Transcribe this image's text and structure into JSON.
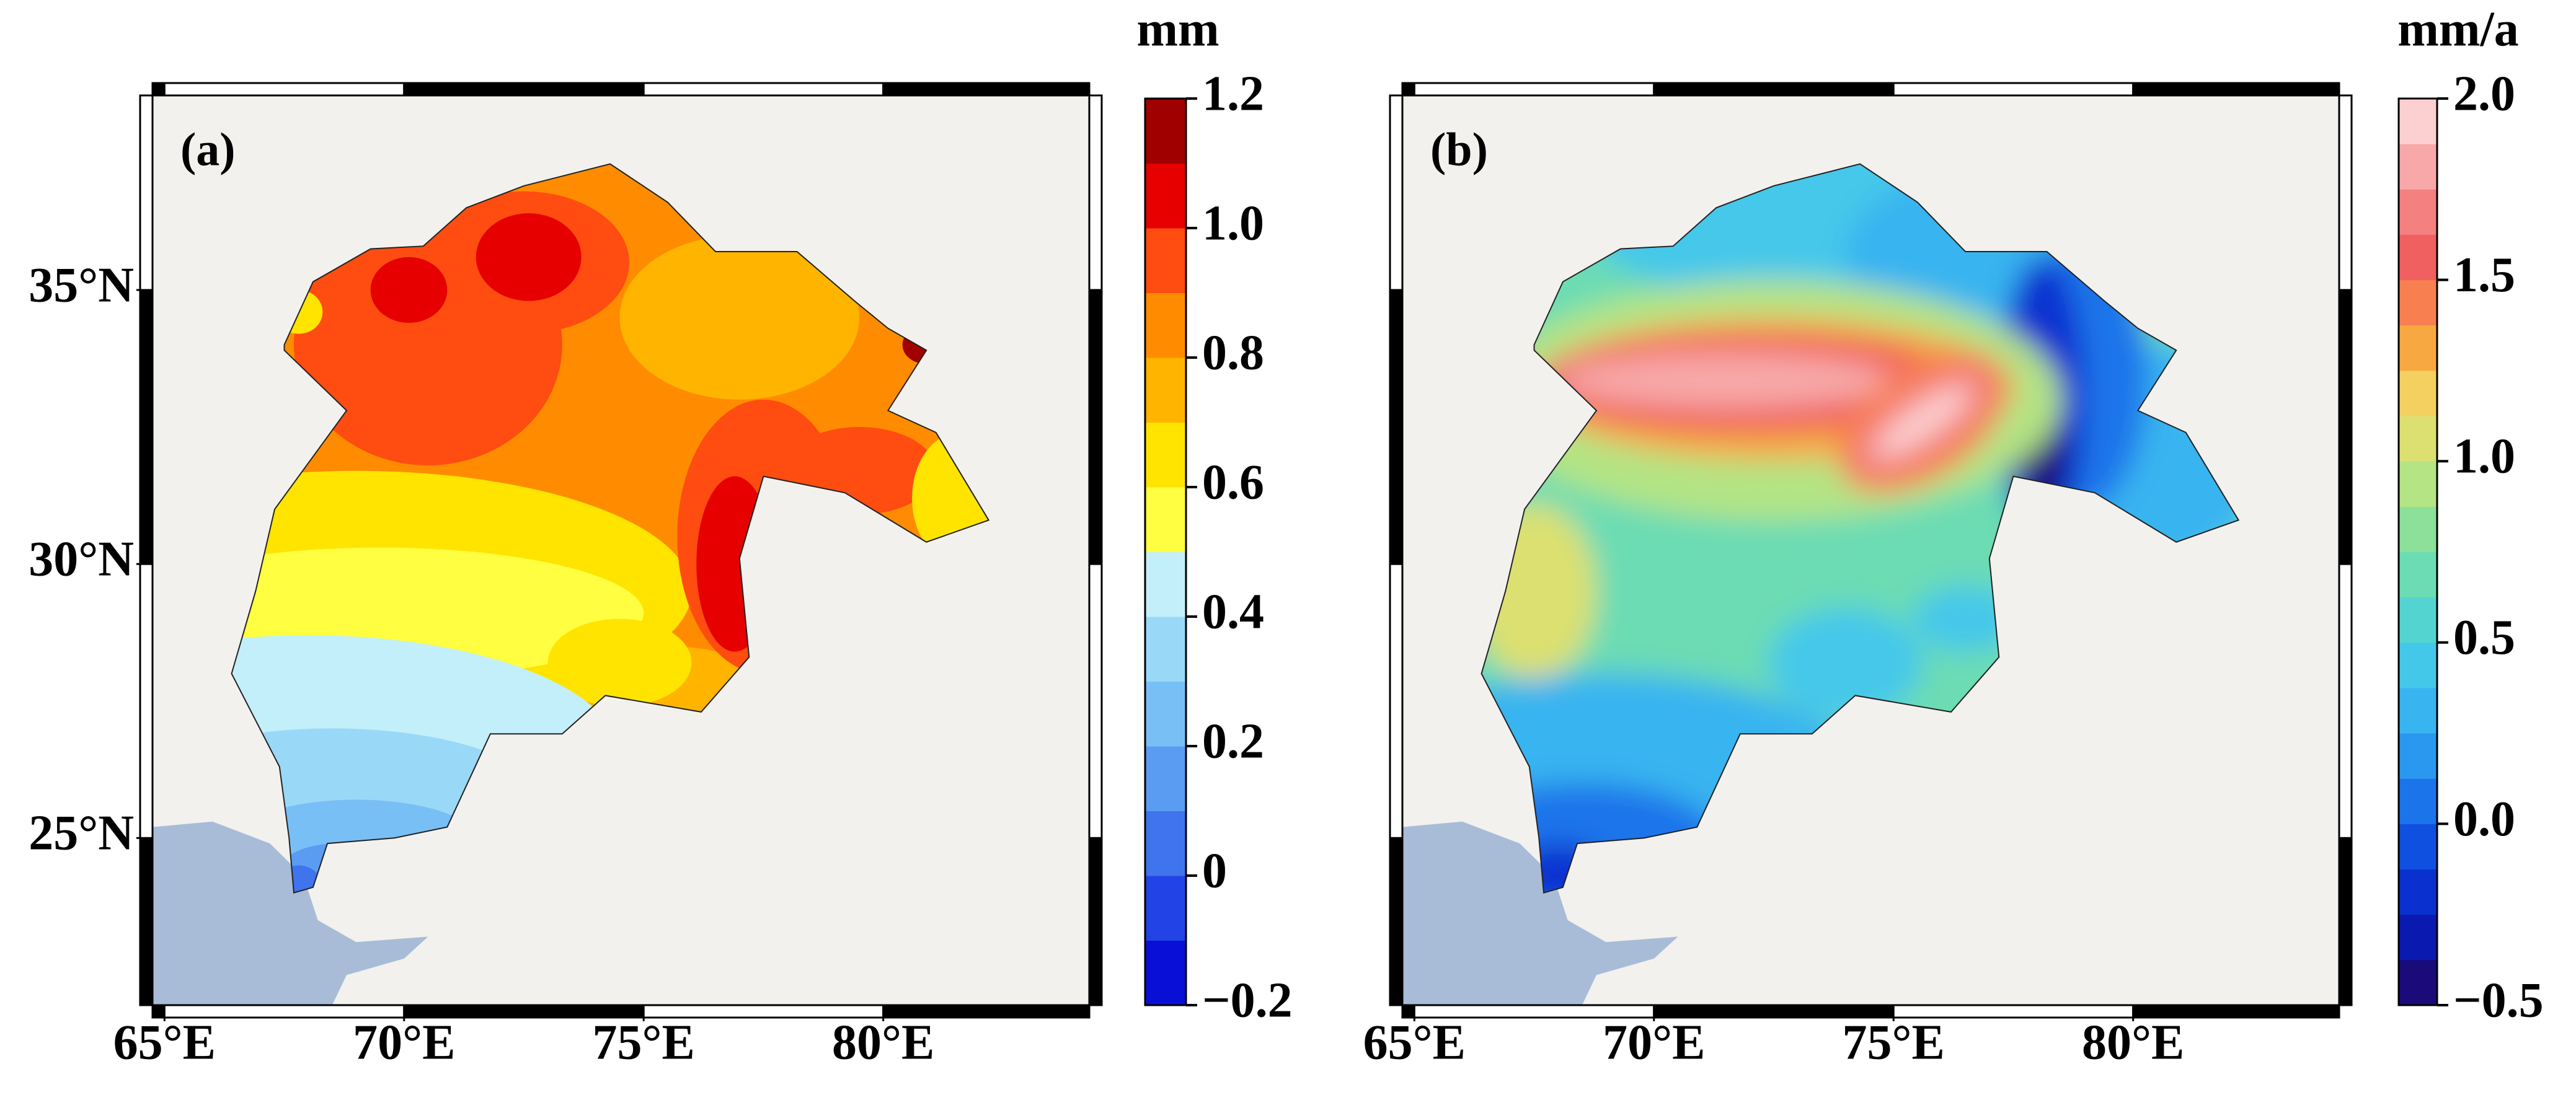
{
  "panels": [
    {
      "label": "(a)",
      "xlim": [
        64.75,
        84.3
      ],
      "ylim": [
        21.95,
        38.55
      ],
      "xticks": [
        {
          "value": 65,
          "label": "65°E"
        },
        {
          "value": 70,
          "label": "70°E"
        },
        {
          "value": 75,
          "label": "75°E"
        },
        {
          "value": 80,
          "label": "80°E"
        }
      ],
      "yticks": [
        {
          "value": 35,
          "label": "35°N"
        },
        {
          "value": 30,
          "label": "30°N"
        },
        {
          "value": 25,
          "label": "25°N"
        }
      ],
      "colorbar": {
        "unit": "mm",
        "lim": [
          -0.2,
          1.2
        ],
        "ticks": [
          1.2,
          {
            "value": 1,
            "label": "1.0"
          },
          0.8,
          0.6,
          0.4,
          0.2,
          0,
          {
            "value": -0.2,
            "label": "−0.2"
          }
        ],
        "colors": [
          "#0a0fd8",
          "#2244e6",
          "#3f74ee",
          "#5a9cf2",
          "#78bff6",
          "#9ad8f8",
          "#c2effa",
          "#fffe40",
          "#ffe400",
          "#ffb400",
          "#ff8c00",
          "#ff4c10",
          "#e60000",
          "#a00000"
        ]
      }
    },
    {
      "label": "(b)",
      "xlim": [
        64.75,
        84.3
      ],
      "ylim": [
        21.95,
        38.55
      ],
      "xticks": [
        {
          "value": 65,
          "label": "65°E"
        },
        {
          "value": 70,
          "label": "70°E"
        },
        {
          "value": 75,
          "label": "75°E"
        },
        {
          "value": 80,
          "label": "80°E"
        }
      ],
      "yticks": [],
      "colorbar": {
        "unit": "mm/a",
        "lim": [
          -0.5,
          2.0
        ],
        "ticks": [
          {
            "value": 2,
            "label": "2.0"
          },
          1.5,
          {
            "value": 1,
            "label": "1.0"
          },
          0.5,
          {
            "value": 0,
            "label": "0.0"
          },
          {
            "value": -0.5,
            "label": "−0.5"
          }
        ],
        "colors": [
          "#1a0a7a",
          "#0a1ab0",
          "#0a30d0",
          "#1050e0",
          "#1c74ea",
          "#2a98ee",
          "#38b4f0",
          "#44c8ea",
          "#54d4d0",
          "#6cdcb4",
          "#8ce09a",
          "#b4e484",
          "#dce070",
          "#f4d060",
          "#f8a840",
          "#f88050",
          "#f06060",
          "#f48080",
          "#f8a8a8",
          "#fcd0d0"
        ]
      }
    }
  ]
}
